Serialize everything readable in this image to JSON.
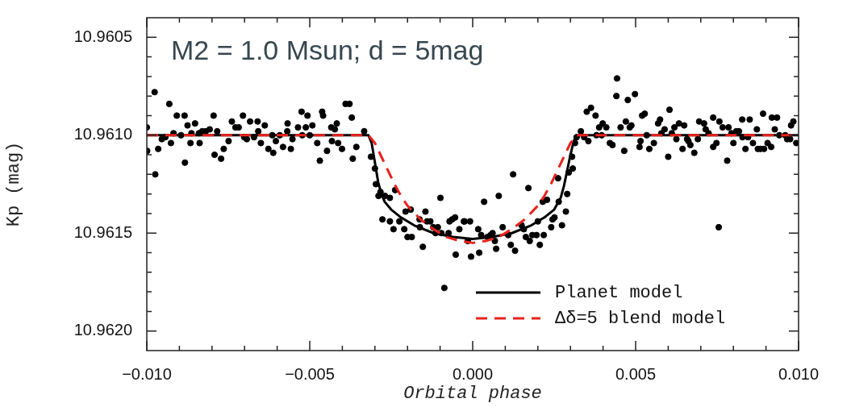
{
  "chart_data": {
    "type": "scatter",
    "xlabel": "Orbital phase",
    "ylabel": "Kp (mag)",
    "annotations": [
      "M2 = 1.0 Msun; d = 5mag"
    ],
    "xlim": [
      -0.01,
      0.01
    ],
    "xticks": [
      {
        "value": -0.01,
        "label": "−0.010"
      },
      {
        "value": -0.009,
        "label": null
      },
      {
        "value": -0.008,
        "label": null
      },
      {
        "value": -0.007,
        "label": null
      },
      {
        "value": -0.006,
        "label": null
      },
      {
        "value": -0.005,
        "label": "−0.005"
      },
      {
        "value": -0.004,
        "label": null
      },
      {
        "value": -0.003,
        "label": null
      },
      {
        "value": -0.002,
        "label": null
      },
      {
        "value": -0.001,
        "label": null
      },
      {
        "value": 0,
        "label": "0.000"
      },
      {
        "value": 0.001,
        "label": null
      },
      {
        "value": 0.002,
        "label": null
      },
      {
        "value": 0.003,
        "label": null
      },
      {
        "value": 0.004,
        "label": null
      },
      {
        "value": 0.005,
        "label": "0.005"
      },
      {
        "value": 0.006,
        "label": null
      },
      {
        "value": 0.007,
        "label": null
      },
      {
        "value": 0.008,
        "label": null
      },
      {
        "value": 0.009,
        "label": null
      },
      {
        "value": 0.01,
        "label": "0.010"
      }
    ],
    "ylim": [
      10.9621,
      10.9604
    ],
    "yticks": [
      10.9605,
      {
        "value": 10.9606,
        "label": null
      },
      {
        "value": 10.9607,
        "label": null
      },
      {
        "value": 10.9608,
        "label": null
      },
      {
        "value": 10.9609,
        "label": null
      },
      {
        "value": 10.961,
        "label": "10.9610"
      },
      {
        "value": 10.9611,
        "label": null
      },
      {
        "value": 10.9612,
        "label": null
      },
      {
        "value": 10.9613,
        "label": null
      },
      {
        "value": 10.9614,
        "label": null
      },
      10.9615,
      {
        "value": 10.9616,
        "label": null
      },
      {
        "value": 10.9617,
        "label": null
      },
      {
        "value": 10.9618,
        "label": null
      },
      {
        "value": 10.9619,
        "label": null
      },
      {
        "value": 10.962,
        "label": "10.9620"
      }
    ],
    "grid": false,
    "legend": "bottom right",
    "series": [
      {
        "color": "#000000",
        "marker": "circle",
        "x": [
          -0.01,
          -0.00999,
          -0.00976,
          -0.00974,
          -0.00965,
          -0.00954,
          -0.00943,
          -0.00931,
          -0.00926,
          -0.00918,
          -0.00908,
          -0.00895,
          -0.00884,
          -0.00883,
          -0.00875,
          -0.00866,
          -0.00863,
          -0.00852,
          -0.00838,
          -0.0084,
          -0.0083,
          -0.00819,
          -0.00807,
          -0.00795,
          -0.00792,
          -0.00784,
          -0.00772,
          -0.00764,
          -0.00749,
          -0.00739,
          -0.00728,
          -0.00718,
          -0.00705,
          -0.00701,
          -0.00693,
          -0.00683,
          -0.00671,
          -0.0066,
          -0.00658,
          -0.0065,
          -0.00638,
          -0.00627,
          -0.00615,
          -0.00612,
          -0.00604,
          -0.00592,
          -0.00582,
          -0.00568,
          -0.00569,
          -0.00558,
          -0.00553,
          -0.00536,
          -0.00525,
          -0.00523,
          -0.00512,
          -0.00507,
          -0.005,
          -0.00492,
          -0.00477,
          -0.00469,
          -0.00462,
          -0.00459,
          -0.00447,
          -0.00434,
          -0.00432,
          -0.00423,
          -0.00417,
          -0.00413,
          -0.00401,
          -0.0039,
          -0.00378,
          -0.00371,
          -0.00368,
          -0.00333,
          -0.00357,
          -0.00312,
          -0.003,
          -0.00297,
          -0.00283,
          -0.00289,
          -0.00269,
          -0.00277,
          -0.00254,
          -0.00254,
          -0.00238,
          -0.00243,
          -0.00225,
          -0.0021,
          -0.00206,
          -0.002,
          -0.0019,
          -0.00187,
          -0.00163,
          -0.00162,
          -0.00153,
          -0.00145,
          -0.0014,
          -0.0013,
          -0.00121,
          -0.00107,
          -0.00114,
          -0.00099,
          -0.00096,
          -0.00074,
          -0.00071,
          -0.00063,
          -0.00054,
          -0.00052,
          -0.00041,
          -0.00027,
          -0.00025,
          -8e-05,
          -0.00015,
          -5e-05,
          0.00017,
          0.0002,
          0.00026,
          0.00035,
          0.00045,
          0.00055,
          0.00061,
          0.00068,
          0.00072,
          0.0008,
          0.00092,
          0.00109,
          0.00117,
          0.00124,
          0.0013,
          0.0015,
          0.00157,
          0.00163,
          0.00171,
          0.00175,
          0.00183,
          0.00196,
          0.002,
          0.00206,
          0.00215,
          0.00218,
          0.00228,
          0.00241,
          0.00245,
          0.00251,
          0.00262,
          0.00264,
          0.00274,
          0.00286,
          0.0029,
          0.00295,
          0.00307,
          0.00305,
          0.00314,
          0.00319,
          0.00332,
          0.00342,
          0.00355,
          -0.00087,
          0.0035,
          0.00363,
          0.00377,
          0.0038,
          0.00388,
          0.00399,
          0.0041,
          0.00396,
          0.00421,
          0.00429,
          0.00443,
          0.00441,
          0.00454,
          0.00465,
          0.0047,
          0.00476,
          0.00482,
          0.00487,
          0.00498,
          0.00512,
          0.00515,
          0.0052,
          0.00528,
          0.00534,
          0.00542,
          0.00556,
          0.00569,
          0.00575,
          0.00579,
          0.00589,
          0.006,
          0.00604,
          0.00611,
          0.00619,
          0.00625,
          0.00633,
          0.00644,
          0.00649,
          0.00658,
          0.00662,
          0.00668,
          0.0068,
          0.00691,
          0.00695,
          0.0071,
          0.00715,
          0.00724,
          0.00738,
          0.00738,
          0.00748,
          0.00757,
          0.00755,
          0.00767,
          0.00781,
          0.00785,
          0.00794,
          0.008,
          0.00809,
          0.00817,
          0.00827,
          0.00828,
          0.00837,
          0.0085,
          0.00845,
          0.0086,
          0.00872,
          0.00875,
          0.00883,
          0.00891,
          0.00894,
          0.00905,
          0.00916,
          0.00918,
          0.00927,
          0.00934,
          0.00941,
          0.00959,
          0.00965,
          0.00974,
          0.00977,
          0.00984,
          0.00993
        ],
        "values": [
          10.96096,
          10.96108,
          10.96078,
          10.9612,
          10.96107,
          10.96102,
          10.96101,
          10.96084,
          10.96104,
          10.96099,
          10.9609,
          10.961,
          10.9609,
          10.96114,
          10.96095,
          10.96104,
          10.96099,
          10.96094,
          10.96104,
          10.96099,
          10.96098,
          10.96098,
          10.96097,
          10.9609,
          10.9611,
          10.96098,
          10.96112,
          10.96107,
          10.96103,
          10.96093,
          10.96096,
          10.96096,
          10.9609,
          10.96101,
          10.96102,
          10.96093,
          10.96101,
          10.96093,
          10.96098,
          10.96104,
          10.96095,
          10.96107,
          10.961,
          10.96109,
          10.96103,
          10.961,
          10.96106,
          10.96094,
          10.96098,
          10.96107,
          10.96102,
          10.96096,
          10.96088,
          10.961,
          10.96096,
          10.9609,
          10.961,
          10.96095,
          10.96104,
          10.96113,
          10.96088,
          10.9609,
          10.96108,
          10.96096,
          10.96103,
          10.96097,
          10.96094,
          10.96104,
          10.96107,
          10.96084,
          10.96084,
          10.96091,
          10.96112,
          10.96098,
          10.96106,
          10.96111,
          10.96117,
          10.96125,
          10.96129,
          10.96131,
          10.96131,
          10.96143,
          10.96132,
          10.96144,
          10.96128,
          10.96148,
          10.96144,
          10.96148,
          10.96139,
          10.96152,
          10.96138,
          10.96152,
          10.96143,
          10.96147,
          10.96157,
          10.96139,
          10.96144,
          10.96144,
          10.96147,
          10.96147,
          10.9615,
          10.96132,
          10.9615,
          10.9615,
          10.96144,
          10.96143,
          10.96142,
          10.96161,
          10.96148,
          10.96144,
          10.96144,
          10.96144,
          10.96154,
          10.96162,
          10.96148,
          10.9616,
          10.96151,
          10.96134,
          10.96152,
          10.96151,
          10.9615,
          10.96154,
          10.96158,
          10.96131,
          10.96147,
          10.96151,
          10.96156,
          10.9612,
          10.96159,
          10.96146,
          10.96148,
          10.96152,
          10.96127,
          10.96154,
          10.96151,
          10.96151,
          10.96144,
          10.96156,
          10.96134,
          10.96151,
          10.96133,
          10.96147,
          10.96143,
          10.96142,
          10.96122,
          10.96134,
          10.96146,
          10.96139,
          10.9613,
          10.96119,
          10.96117,
          10.96111,
          10.96104,
          10.96101,
          10.96098,
          10.96101,
          10.96103,
          10.96178,
          10.96088,
          10.96086,
          10.9609,
          10.961,
          10.96096,
          10.96094,
          10.96096,
          10.961,
          10.96104,
          10.96105,
          10.96071,
          10.9608,
          10.96096,
          10.96108,
          10.96093,
          10.96082,
          10.96096,
          10.96095,
          10.96079,
          10.96106,
          10.96103,
          10.9609,
          10.96089,
          10.961,
          10.96107,
          10.96104,
          10.96094,
          10.96092,
          10.96099,
          10.96097,
          10.96111,
          10.96087,
          10.96099,
          10.96096,
          10.96102,
          10.96094,
          10.96107,
          10.96095,
          10.96102,
          10.96103,
          10.96105,
          10.96109,
          10.96102,
          10.96093,
          10.96094,
          10.96097,
          10.96099,
          10.96106,
          10.96091,
          10.96104,
          10.96093,
          10.96147,
          10.96096,
          10.96113,
          10.96096,
          10.96099,
          10.96104,
          10.96098,
          10.96098,
          10.96092,
          10.96101,
          10.96107,
          10.96092,
          10.96101,
          10.96104,
          10.96097,
          10.96107,
          10.96107,
          10.96089,
          10.96107,
          10.96104,
          10.96106,
          10.96091,
          10.96097,
          10.96091,
          10.961,
          10.961,
          10.96102,
          10.96102,
          10.96095,
          10.96093,
          10.96104
        ]
      },
      {
        "type": "line",
        "name": "Planet model",
        "color": "#000000",
        "line_style": "solid",
        "marker": "none",
        "x": [
          -0.01,
          -0.0032,
          -0.0031,
          -0.003,
          -0.0029,
          -0.0028,
          -0.0027,
          -0.0025,
          -0.0022,
          -0.0018,
          -0.0012,
          -0.0006,
          0.0,
          0.0006,
          0.0012,
          0.0018,
          0.0022,
          0.0025,
          0.0027,
          0.0028,
          0.0029,
          0.003,
          0.0031,
          0.0032,
          0.01
        ],
        "values": [
          10.961,
          10.961,
          10.96104,
          10.96114,
          10.96124,
          10.9613,
          10.96134,
          10.96138,
          10.96142,
          10.96146,
          10.9615,
          10.96152,
          10.96153,
          10.96152,
          10.9615,
          10.96146,
          10.96142,
          10.96138,
          10.96132,
          10.96126,
          10.96118,
          10.9611,
          10.96103,
          10.961,
          10.961
        ]
      },
      {
        "type": "line",
        "name": "Δδ=5 blend model",
        "color": "#e8221c",
        "line_style": "dashed",
        "marker": "none",
        "x": [
          -0.01,
          -0.0032,
          -0.003,
          -0.0028,
          -0.0026,
          -0.0024,
          -0.0022,
          -0.002,
          -0.0016,
          -0.0012,
          -0.0008,
          -0.0004,
          0.0,
          0.0004,
          0.0008,
          0.0012,
          0.0016,
          0.002,
          0.0022,
          0.0024,
          0.0026,
          0.0028,
          0.003,
          0.0032,
          0.01
        ],
        "values": [
          10.961,
          10.961,
          10.96104,
          10.96111,
          10.96118,
          10.96125,
          10.96131,
          10.96136,
          10.96143,
          10.96148,
          10.96152,
          10.96154,
          10.96155,
          10.96154,
          10.96152,
          10.96148,
          10.96143,
          10.96136,
          10.96131,
          10.96125,
          10.96118,
          10.96111,
          10.96104,
          10.961,
          10.961
        ]
      }
    ]
  }
}
